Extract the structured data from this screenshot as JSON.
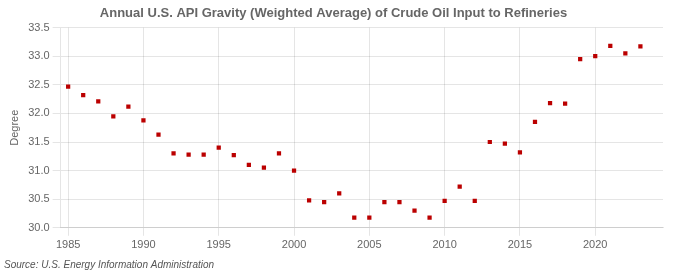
{
  "chart_data": {
    "type": "scatter",
    "title": "Annual U.S. API Gravity (Weighted Average) of Crude Oil Input to Refineries",
    "y_label": "Degree",
    "annotation": "Source: U.S. Energy Information Administration",
    "x": [
      1985,
      1986,
      1987,
      1988,
      1989,
      1990,
      1991,
      1992,
      1993,
      1994,
      1995,
      1996,
      1997,
      1998,
      1999,
      2000,
      2001,
      2002,
      2003,
      2004,
      2005,
      2006,
      2007,
      2008,
      2009,
      2010,
      2011,
      2012,
      2013,
      2014,
      2015,
      2016,
      2017,
      2018,
      2019,
      2020,
      2021,
      2022,
      2023
    ],
    "values": [
      32.47,
      32.32,
      32.21,
      31.95,
      32.12,
      31.88,
      31.63,
      31.3,
      31.28,
      31.28,
      31.4,
      31.27,
      31.1,
      31.05,
      31.3,
      31.0,
      30.48,
      30.45,
      30.6,
      30.18,
      30.18,
      30.45,
      30.45,
      30.3,
      30.18,
      30.47,
      30.72,
      30.47,
      31.5,
      31.47,
      31.32,
      31.85,
      32.18,
      32.17,
      32.95,
      33.0,
      33.18,
      33.05,
      33.17
    ],
    "color": "#bb0000",
    "marker": "square",
    "xlim": [
      1984.5,
      2024.5
    ],
    "xticks": [
      1985,
      1990,
      1995,
      2000,
      2005,
      2010,
      2015,
      2020
    ],
    "ylim": [
      30.0,
      33.5
    ],
    "yticks": [
      {
        "value": 30.0,
        "label": "30.0"
      },
      30.5,
      {
        "value": 31.0,
        "label": "31.0"
      },
      31.5,
      {
        "value": 32.0,
        "label": "32.0"
      },
      32.5,
      {
        "value": 33.0,
        "label": "33.0"
      },
      33.5
    ],
    "grid": true
  }
}
